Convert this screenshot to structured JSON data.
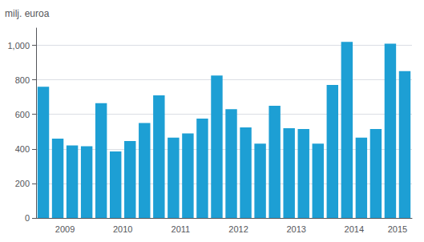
{
  "chart_data": {
    "type": "bar",
    "ylabel": "milj. euroa",
    "categories": [
      null,
      "2009",
      null,
      null,
      null,
      "2010",
      null,
      null,
      null,
      "2011",
      null,
      null,
      null,
      "2012",
      null,
      null,
      null,
      "2013",
      null,
      null,
      null,
      "2014",
      null,
      null,
      "2015",
      null
    ],
    "values": [
      760,
      460,
      420,
      415,
      665,
      385,
      445,
      550,
      710,
      465,
      490,
      575,
      825,
      630,
      525,
      430,
      650,
      520,
      515,
      430,
      770,
      1020,
      465,
      515,
      1010,
      850
    ],
    "color": "#1d9fd4",
    "ylim": [
      0,
      1100
    ],
    "yticks": [
      0,
      200,
      400,
      600,
      800,
      1000
    ],
    "grid": true
  }
}
